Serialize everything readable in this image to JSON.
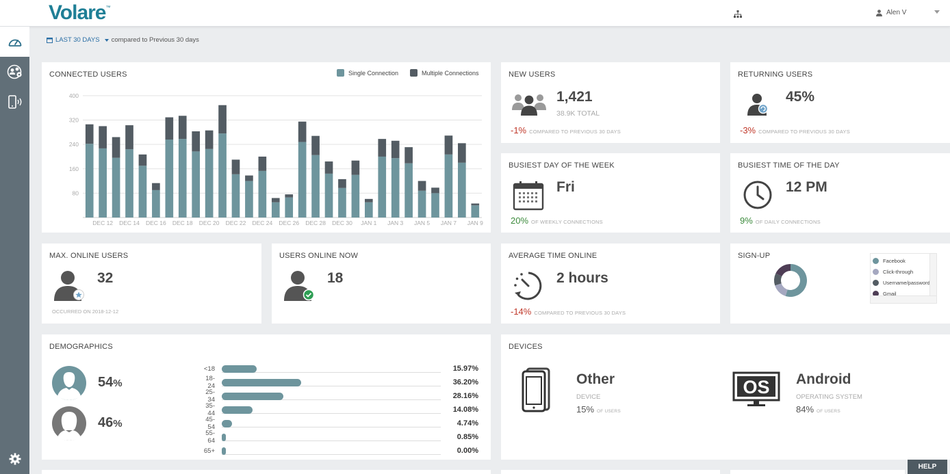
{
  "header": {
    "logo": "Volare",
    "user_name": "Alen V"
  },
  "filter": {
    "period_label": "LAST 30 DAYS",
    "compare_text": "compared to Previous 30 days"
  },
  "connected_users": {
    "title": "CONNECTED USERS",
    "legend": {
      "single": "Single Connection",
      "multiple": "Multiple Connections"
    }
  },
  "chart_data": {
    "type": "bar",
    "stacked": true,
    "title": "CONNECTED USERS",
    "categories": [
      "DEC 11",
      "DEC 12",
      "DEC 13",
      "DEC 14",
      "DEC 15",
      "DEC 16",
      "DEC 17",
      "DEC 18",
      "DEC 19",
      "DEC 20",
      "DEC 21",
      "DEC 22",
      "DEC 23",
      "DEC 24",
      "DEC 25",
      "DEC 26",
      "DEC 27",
      "DEC 28",
      "DEC 29",
      "DEC 30",
      "DEC 31",
      "JAN 1",
      "JAN 2",
      "JAN 3",
      "JAN 4",
      "JAN 5",
      "JAN 6",
      "JAN 7",
      "JAN 8",
      "JAN 9"
    ],
    "tick_labels": [
      "DEC 12",
      "DEC 14",
      "DEC 16",
      "DEC 18",
      "DEC 20",
      "DEC 22",
      "DEC 24",
      "DEC 26",
      "DEC 28",
      "DEC 30",
      "JAN 1",
      "JAN 3",
      "JAN 5",
      "JAN 7",
      "JAN 9"
    ],
    "series": [
      {
        "name": "Single Connection",
        "color": "#6e959d",
        "values": [
          242,
          227,
          196,
          224,
          170,
          90,
          256,
          258,
          217,
          225,
          276,
          142,
          120,
          153,
          50,
          66,
          248,
          205,
          144,
          97,
          140,
          50,
          200,
          195,
          178,
          88,
          80,
          207,
          180,
          40
        ]
      },
      {
        "name": "Multiple Connections",
        "color": "#535c63",
        "values": [
          64,
          73,
          68,
          79,
          37,
          23,
          73,
          76,
          66,
          61,
          93,
          48,
          18,
          47,
          14,
          10,
          67,
          63,
          40,
          29,
          47,
          11,
          58,
          57,
          53,
          32,
          18,
          62,
          64,
          6
        ]
      }
    ],
    "y_ticks": [
      80,
      160,
      240,
      320,
      400
    ],
    "ylim": [
      0,
      420
    ],
    "grid": true,
    "legend_position": "top-right"
  },
  "new_users": {
    "title": "NEW USERS",
    "value": "1,421",
    "total": "38.9K TOTAL",
    "change": "-1%",
    "change_label": "COMPARED TO PREVIOUS 30 DAYS"
  },
  "returning_users": {
    "title": "RETURNING USERS",
    "value": "45%",
    "change": "-3%",
    "change_label": "COMPARED TO PREVIOUS 30 DAYS"
  },
  "busiest_day": {
    "title": "BUSIEST DAY OF THE WEEK",
    "value": "Fri",
    "share": "20%",
    "share_label": "OF WEEKLY CONNECTIONS"
  },
  "busiest_time": {
    "title": "BUSIEST TIME OF THE DAY",
    "value": "12 PM",
    "share": "9%",
    "share_label": "OF DAILY CONNECTIONS"
  },
  "max_online": {
    "title": "MAX. ONLINE USERS",
    "value": "32",
    "occurred": "OCCURRED ON 2018-12-12"
  },
  "online_now": {
    "title": "USERS ONLINE NOW",
    "value": "18"
  },
  "avg_time": {
    "title": "AVERAGE TIME ONLINE",
    "value": "2 hours",
    "change": "-14%",
    "change_label": "COMPARED TO PREVIOUS 30 DAYS"
  },
  "signup": {
    "title": "SIGN-UP",
    "items": [
      {
        "label": "Facebook",
        "color": "#6e959d",
        "share": 0.55
      },
      {
        "label": "Click-through",
        "color": "#a5a8c0",
        "share": 0.15
      },
      {
        "label": "Username/password",
        "color": "#535c63",
        "share": 0.12
      },
      {
        "label": "Gmail",
        "color": "#4e3d55",
        "share": 0.18
      }
    ]
  },
  "demographics": {
    "title": "DEMOGRAPHICS",
    "male_pct": "54",
    "female_pct": "46",
    "pct_sign": "%",
    "groups": [
      {
        "label": "<18",
        "value": "15.97%",
        "pct": 15.97
      },
      {
        "label": "18-24",
        "value": "36.20%",
        "pct": 36.2
      },
      {
        "label": "25-34",
        "value": "28.16%",
        "pct": 28.16
      },
      {
        "label": "35-44",
        "value": "14.08%",
        "pct": 14.08
      },
      {
        "label": "45-54",
        "value": "4.74%",
        "pct": 4.74
      },
      {
        "label": "55-64",
        "value": "0.85%",
        "pct": 0.85
      },
      {
        "label": "65+",
        "value": "0.00%",
        "pct": 0.0
      }
    ]
  },
  "devices": {
    "title": "DEVICES",
    "device": {
      "name": "Other",
      "label": "DEVICE",
      "pct": "15%",
      "pct_label": "OF USERS"
    },
    "os": {
      "icon_text": "OS",
      "name": "Android",
      "label": "OPERATING SYSTEM",
      "pct": "84%",
      "pct_label": "OF USERS"
    }
  },
  "help_label": "HELP"
}
